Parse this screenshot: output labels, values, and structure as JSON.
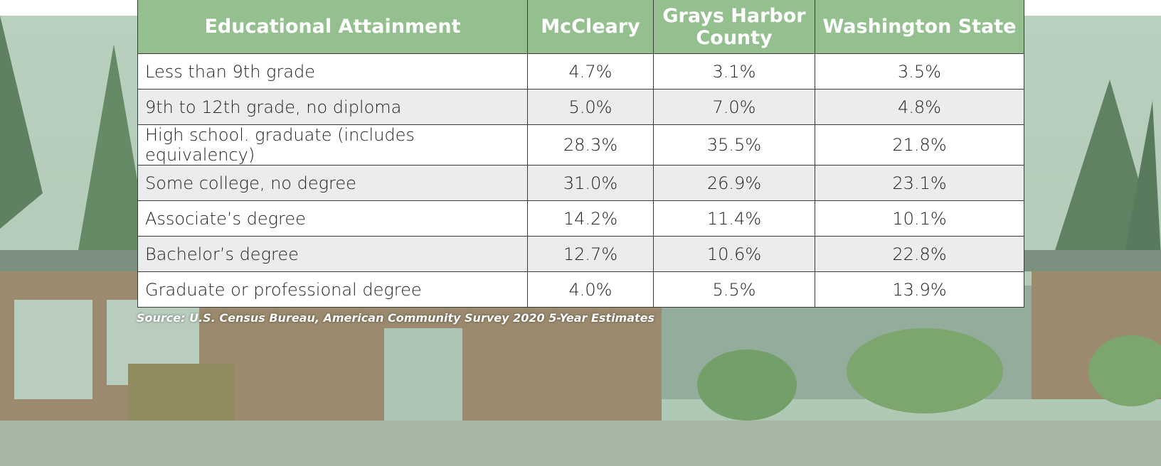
{
  "table": {
    "header": [
      "Educational Attainment",
      "McCleary",
      "Grays Harbor County",
      "Washington State"
    ],
    "rows": [
      [
        "Less than 9th grade",
        "4.7%",
        "3.1%",
        "3.5%"
      ],
      [
        "9th to 12th grade, no diploma",
        "5.0%",
        "7.0%",
        "4.8%"
      ],
      [
        "High school. graduate (includes equivalency)",
        "28.3%",
        "35.5%",
        "21.8%"
      ],
      [
        "Some college, no degree",
        "31.0%",
        "26.9%",
        "23.1%"
      ],
      [
        "Associate’s degree",
        "14.2%",
        "11.4%",
        "10.1%"
      ],
      [
        "Bachelor’s degree",
        "12.7%",
        "10.6%",
        "22.8%"
      ],
      [
        "Graduate or professional degree",
        "4.0%",
        "5.5%",
        "13.9%"
      ]
    ]
  },
  "source": "Source: U.S. Census Bureau, American Community Survey 2020 5-Year Estimates"
}
